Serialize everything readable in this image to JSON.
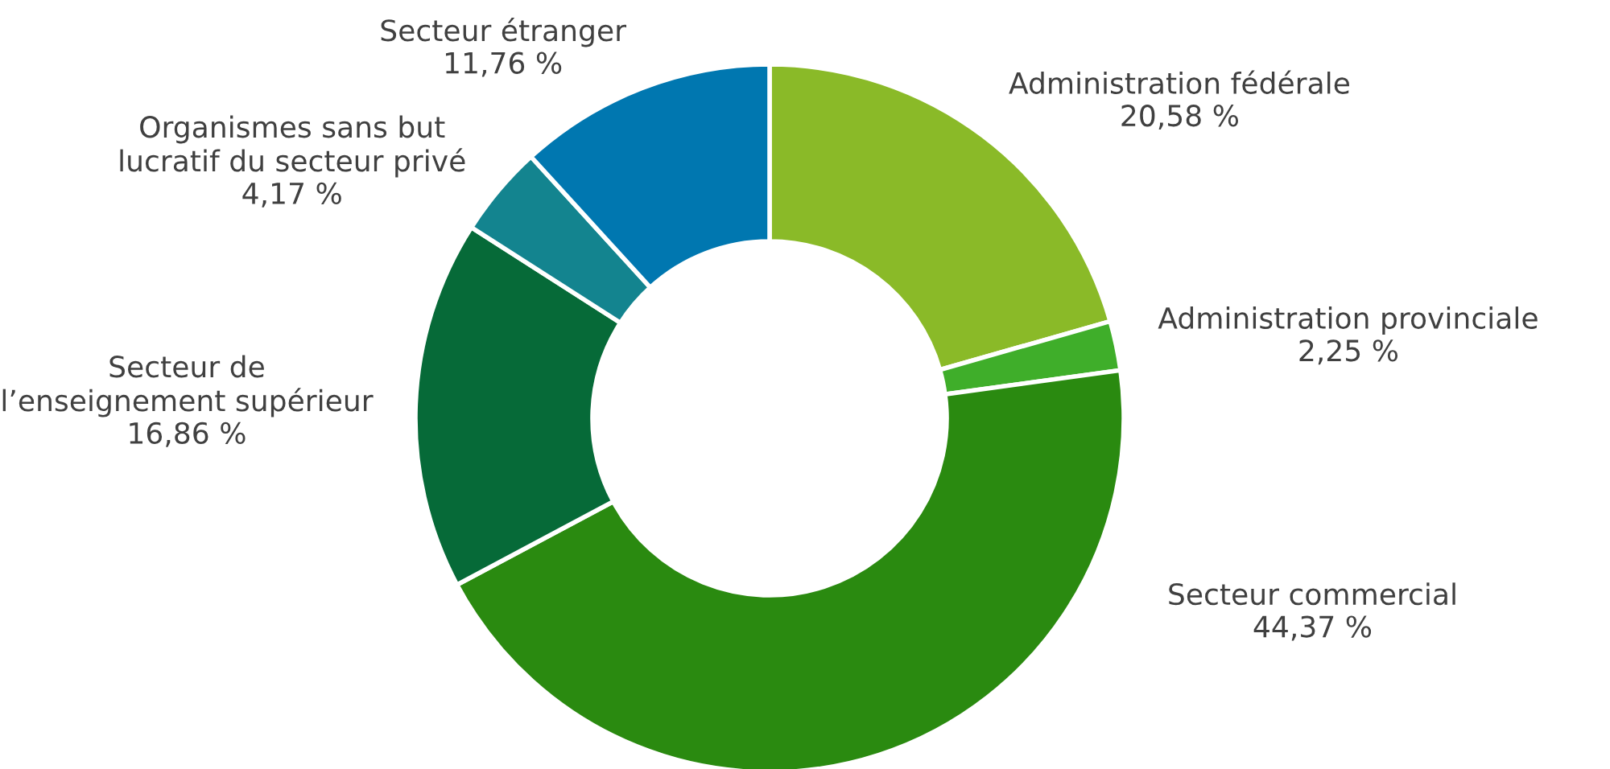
{
  "chart_data": {
    "type": "donut",
    "categories": [
      "Administration fédérale",
      "Administration provinciale",
      "Secteur commercial",
      "Secteur de\nl’enseignement supérieur",
      "Organismes sans but\nlucratif du secteur privé",
      "Secteur étranger"
    ],
    "values": [
      20.58,
      2.25,
      44.37,
      16.86,
      4.17,
      11.76
    ],
    "value_labels": [
      "20,58 %",
      "2,25 %",
      "44,37 %",
      "16,86 %",
      "4,17 %",
      "11,76 %"
    ],
    "colors": [
      "#8aba28",
      "#3fae2a",
      "#2a8a10",
      "#066a38",
      "#13848f",
      "#0077b0"
    ]
  }
}
